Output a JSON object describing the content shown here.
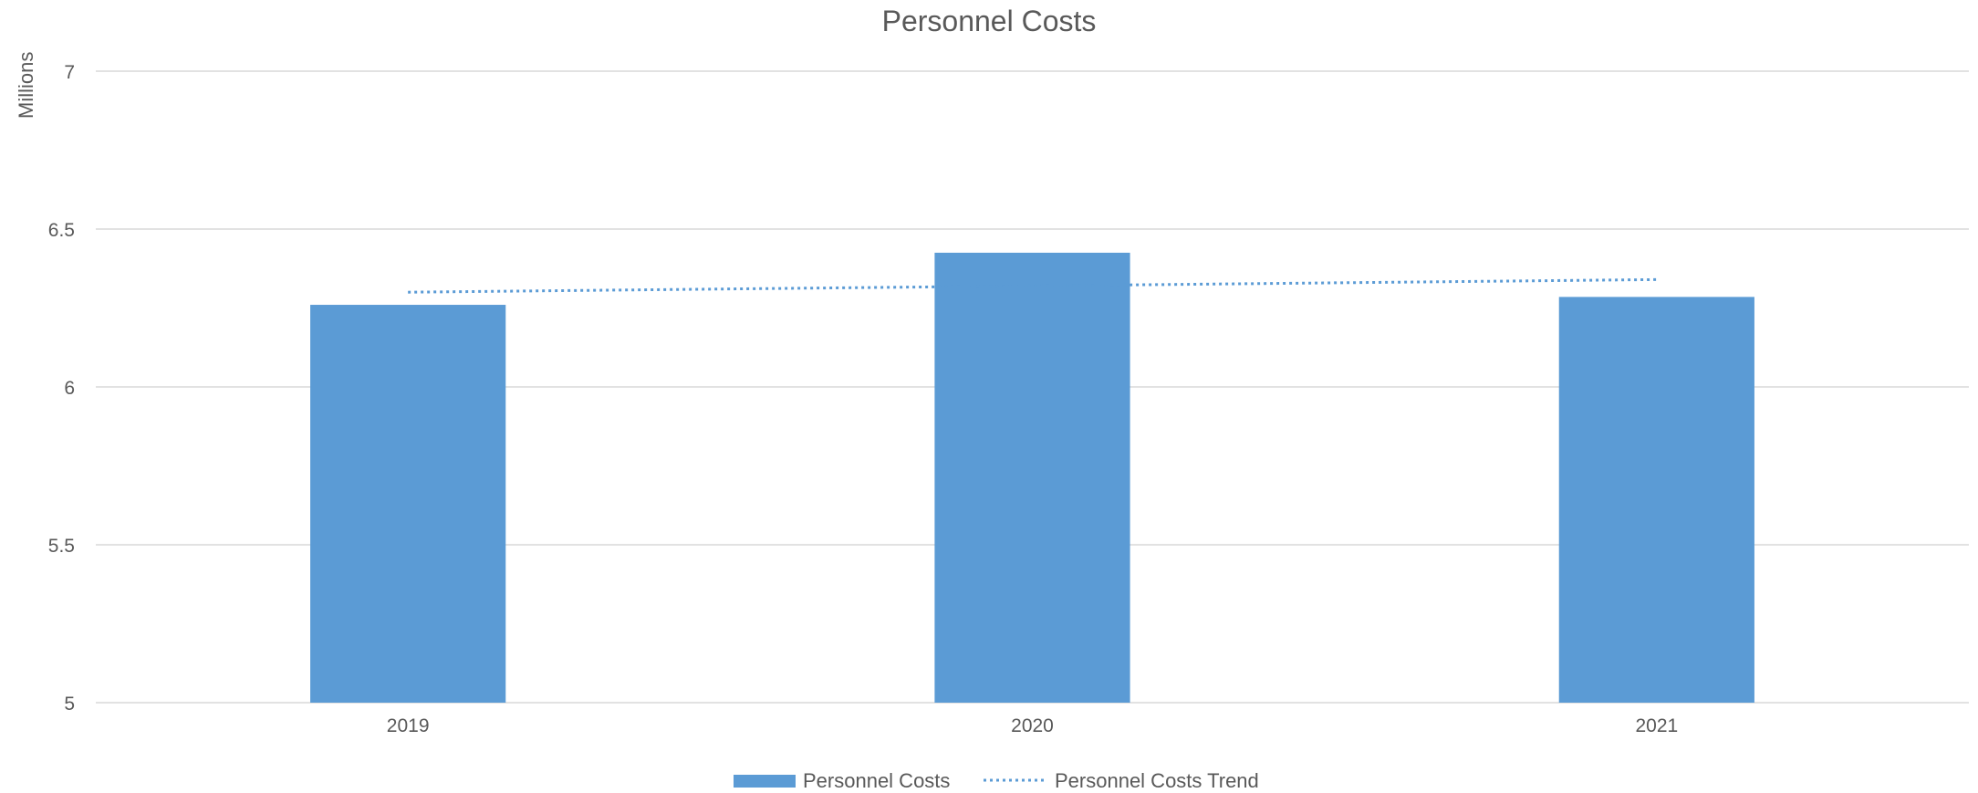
{
  "chart_data": {
    "type": "bar",
    "title": "Personnel Costs",
    "ylabel": "Millions",
    "xlabel": "",
    "categories": [
      "2019",
      "2020",
      "2021"
    ],
    "series": [
      {
        "name": "Personnel Costs",
        "values": [
          6.26,
          6.425,
          6.285
        ],
        "color": "#5b9bd5"
      }
    ],
    "trend": {
      "name": "Personnel Costs Trend",
      "values": [
        6.3,
        6.32,
        6.34
      ],
      "color": "#5b9bd5",
      "style": "dotted"
    },
    "ylim": [
      5,
      7
    ],
    "yticks": [
      "5",
      "5.5",
      "6",
      "6.5",
      "7"
    ],
    "grid": true,
    "legend_position": "bottom"
  }
}
